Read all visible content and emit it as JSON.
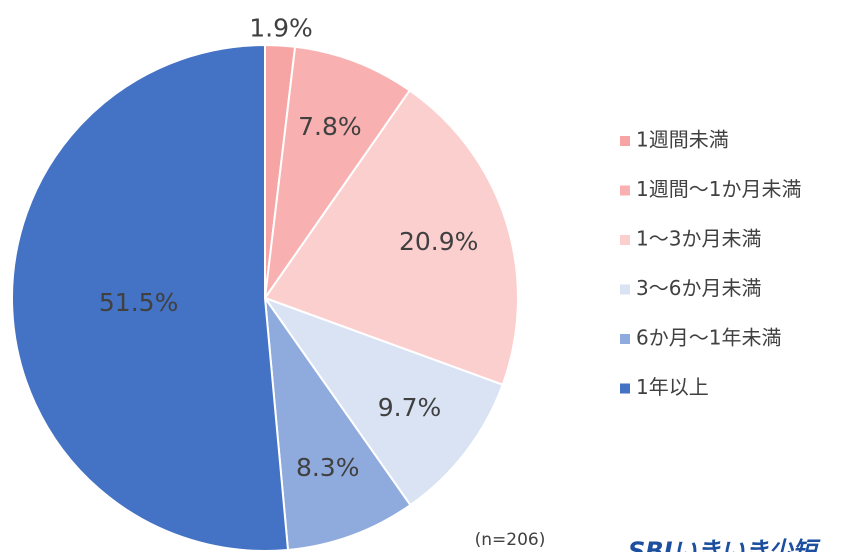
{
  "chart_data": {
    "type": "pie",
    "categories": [
      "1週間未満",
      "1週間〜1か月未満",
      "1〜3か月未満",
      "3〜6か月未満",
      "6か月〜1年未満",
      "1年以上"
    ],
    "values": [
      1.9,
      7.8,
      20.9,
      9.7,
      8.3,
      51.5
    ],
    "value_labels": [
      "1.9%",
      "7.8%",
      "20.9%",
      "9.7%",
      "8.3%",
      "51.5%"
    ],
    "colors": [
      "#f7a4a4",
      "#f9b0b0",
      "#fccfcf",
      "#dae3f3",
      "#8faadc",
      "#4472c4"
    ],
    "legend": "right",
    "note": "(n=206)",
    "logo": "SBIいきいき少短"
  }
}
